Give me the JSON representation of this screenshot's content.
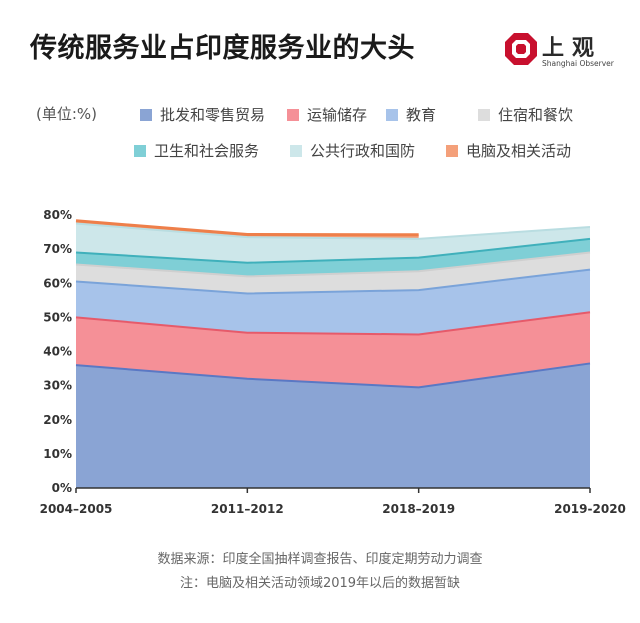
{
  "header": {
    "title": "传统服务业占印度服务业的大头",
    "logo_main": "上观",
    "logo_sub": "Shanghai Observer"
  },
  "chart_data": {
    "type": "area",
    "stacked": true,
    "unit_label": "(单位:%)",
    "categories": [
      "2004–2005",
      "2011–2012",
      "2018–2019",
      "2019-2020"
    ],
    "y_ticks": [
      "0%",
      "10%",
      "20%",
      "30%",
      "40%",
      "50%",
      "60%",
      "70%",
      "80%"
    ],
    "ylim": [
      0,
      80
    ],
    "series": [
      {
        "name": "批发和零售贸易",
        "color": "#8aa4d4",
        "line": "#5a78c4",
        "values": [
          36,
          32,
          29.5,
          36.5
        ]
      },
      {
        "name": "运输储存",
        "color": "#f59097",
        "line": "#e65a6a",
        "values": [
          14,
          13.5,
          15.5,
          15
        ]
      },
      {
        "name": "教育",
        "color": "#a7c3ea",
        "line": "#7aa3d9",
        "values": [
          10.5,
          11.5,
          13,
          12.5
        ]
      },
      {
        "name": "住宿和餐饮",
        "color": "#dddddd",
        "line": "#cfcfcf",
        "values": [
          5,
          5,
          5.5,
          5
        ]
      },
      {
        "name": "卫生和社会服务",
        "color": "#7fcfd6",
        "line": "#3fb0bb",
        "values": [
          3.5,
          4,
          4,
          4
        ]
      },
      {
        "name": "公共行政和国防",
        "color": "#cde7ea",
        "line": "#b9dde1",
        "values": [
          8.5,
          7.5,
          5.5,
          3.5
        ]
      },
      {
        "name": "电脑及相关活动",
        "color": "#f4a07a",
        "line": "#ee7f4a",
        "values": [
          0.8,
          0.8,
          1.2,
          null
        ]
      }
    ]
  },
  "footer": {
    "source": "数据来源：印度全国抽样调查报告、印度定期劳动力调查",
    "note": "注：电脑及相关活动领域2019年以后的数据暂缺"
  },
  "colors": {
    "background": "#ffffff",
    "logo_red": "#c8102e",
    "axis": "#333333"
  }
}
